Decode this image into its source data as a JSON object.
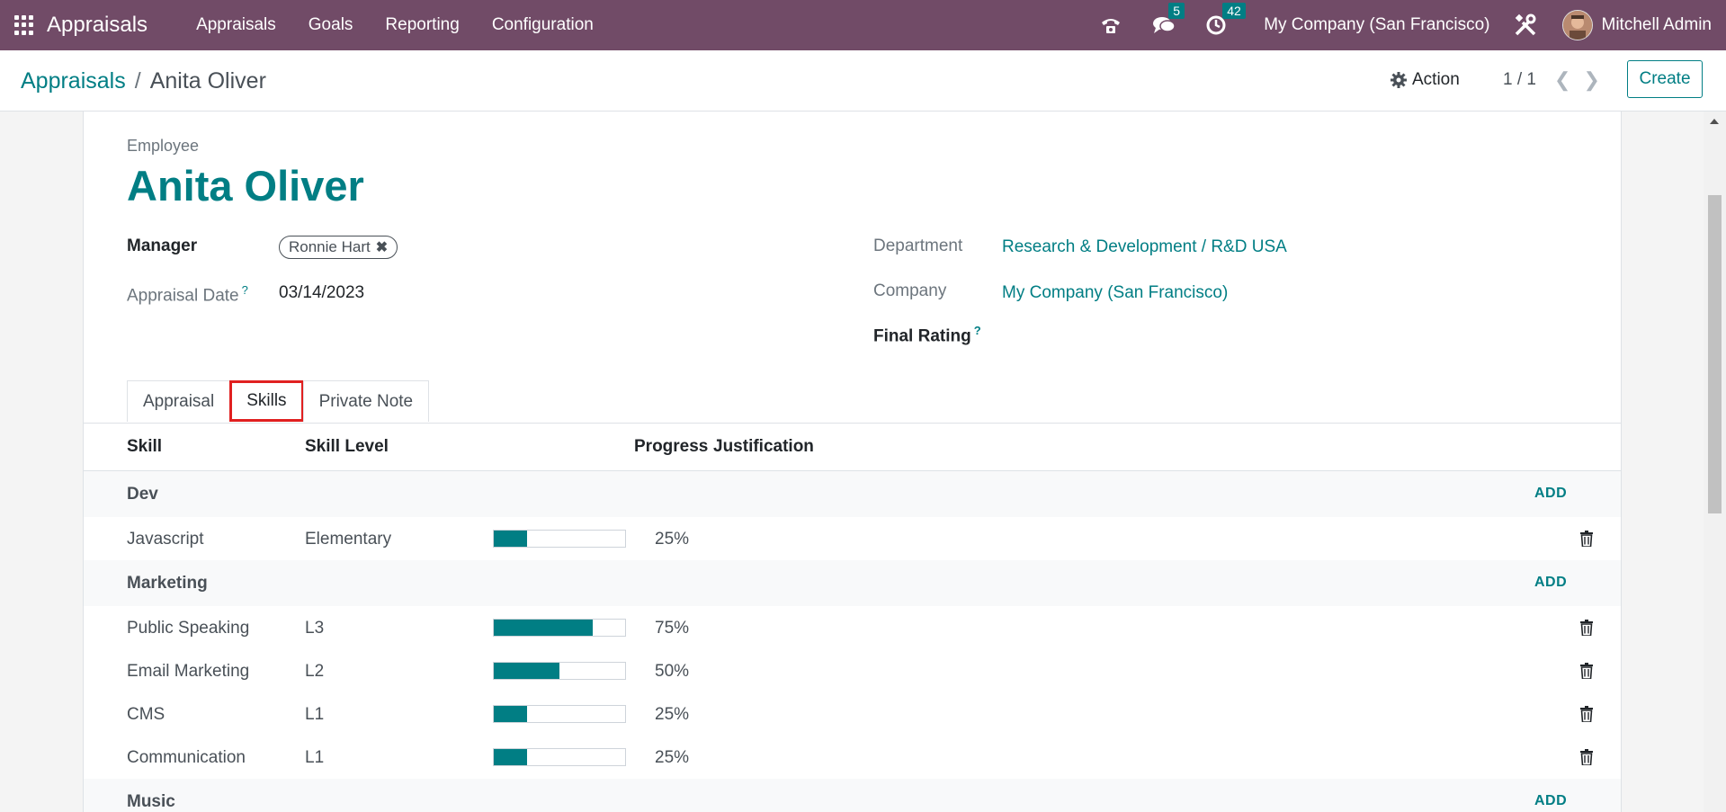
{
  "navbar": {
    "app_title": "Appraisals",
    "menu": [
      "Appraisals",
      "Goals",
      "Reporting",
      "Configuration"
    ],
    "messages_count": "5",
    "activities_count": "42",
    "company": "My Company (San Francisco)",
    "user": "Mitchell Admin",
    "icons": [
      "apps-grid-icon",
      "phone-icon",
      "chat-icon",
      "clock-icon",
      "debug-tools-icon"
    ]
  },
  "control_panel": {
    "breadcrumb_parent": "Appraisals",
    "breadcrumb_sep": "/",
    "breadcrumb_current": "Anita Oliver",
    "action_label": "Action",
    "pager": "1 / 1",
    "create_label": "Create"
  },
  "form": {
    "employee_label": "Employee",
    "employee_name": "Anita Oliver",
    "manager_label": "Manager",
    "manager_tag": "Ronnie Hart",
    "appraisal_date_label": "Appraisal Date",
    "appraisal_date": "03/14/2023",
    "department_label": "Department",
    "department": "Research & Development / R&D USA",
    "company_label": "Company",
    "company": "My Company (San Francisco)",
    "final_rating_label": "Final Rating",
    "help_mark": "?"
  },
  "tabs": [
    {
      "label": "Appraisal",
      "active": false
    },
    {
      "label": "Skills",
      "active": true
    },
    {
      "label": "Private Note",
      "active": false
    }
  ],
  "table": {
    "headers": {
      "skill": "Skill",
      "level": "Skill Level",
      "progress": "Progress",
      "justification": "Justification"
    },
    "add_label": "ADD",
    "groups": [
      {
        "name": "Dev",
        "rows": [
          {
            "skill": "Javascript",
            "level": "Elementary",
            "progress": 25,
            "progress_text": "25%"
          }
        ]
      },
      {
        "name": "Marketing",
        "rows": [
          {
            "skill": "Public Speaking",
            "level": "L3",
            "progress": 75,
            "progress_text": "75%"
          },
          {
            "skill": "Email Marketing",
            "level": "L2",
            "progress": 50,
            "progress_text": "50%"
          },
          {
            "skill": "CMS",
            "level": "L1",
            "progress": 25,
            "progress_text": "25%"
          },
          {
            "skill": "Communication",
            "level": "L1",
            "progress": 25,
            "progress_text": "25%"
          }
        ]
      },
      {
        "name": "Music",
        "rows": []
      }
    ]
  },
  "colors": {
    "brand": "#714b67",
    "accent": "#017e84",
    "highlight": "#e02020"
  }
}
